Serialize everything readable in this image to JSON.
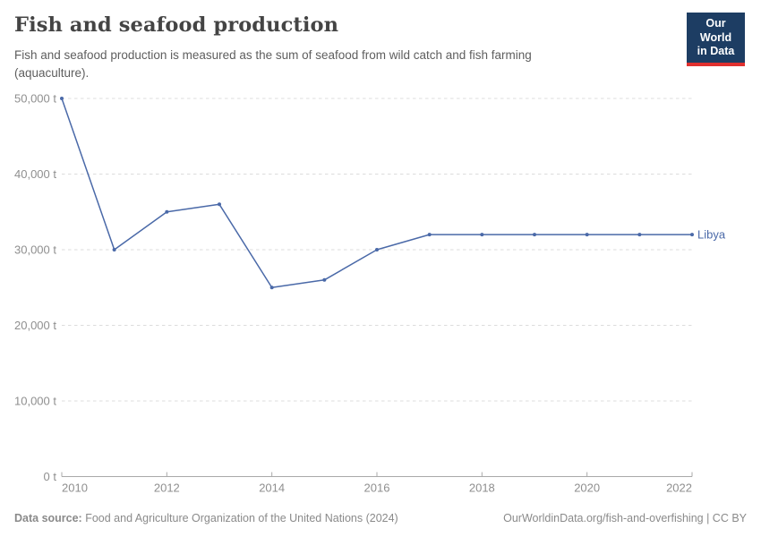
{
  "header": {
    "title": "Fish and seafood production",
    "subtitle": "Fish and seafood production is measured as the sum of seafood from wild catch and fish farming (aquaculture).",
    "logo": {
      "line1": "Our World",
      "line2": "in Data"
    }
  },
  "chart_data": {
    "type": "line",
    "title": "Fish and seafood production",
    "x": [
      2010,
      2011,
      2012,
      2013,
      2014,
      2015,
      2016,
      2017,
      2018,
      2019,
      2020,
      2021,
      2022
    ],
    "series": [
      {
        "name": "Libya",
        "color": "#4a69a8",
        "values": [
          50000,
          30000,
          35000,
          36000,
          25000,
          26000,
          30000,
          32000,
          32000,
          32000,
          32000,
          32000,
          32000
        ]
      }
    ],
    "xlim": [
      2010,
      2022
    ],
    "ylim": [
      0,
      50000
    ],
    "yticks": [
      0,
      10000,
      20000,
      30000,
      40000,
      50000
    ],
    "ytick_labels": [
      "0 t",
      "10,000 t",
      "20,000 t",
      "30,000 t",
      "40,000 t",
      "50,000 t"
    ],
    "xticks": [
      2010,
      2012,
      2014,
      2016,
      2018,
      2020,
      2022
    ],
    "grid": true,
    "legend_position": "end-of-line",
    "unit": "t"
  },
  "colors": {
    "line": "#4a69a8",
    "grid": "#dcdcdc",
    "axis_line": "#a9a9a9",
    "axis_text": "#8f8f8f",
    "logo_bg": "#1d3d63",
    "logo_red": "#e0302e"
  },
  "footer": {
    "source_label": "Data source:",
    "source_text": " Food and Agriculture Organization of the United Nations (2024)",
    "link": "OurWorldinData.org/fish-and-overfishing | CC BY"
  }
}
